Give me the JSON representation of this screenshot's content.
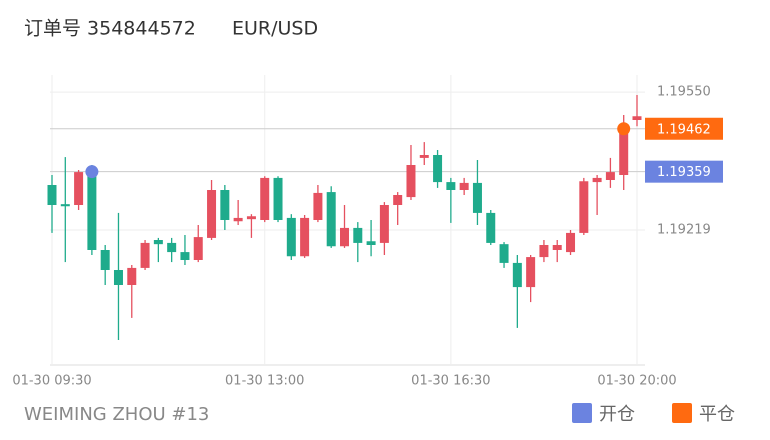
{
  "header": {
    "order": "订单号 354844572",
    "symbol": "EUR/USD"
  },
  "footer": "WEIMING ZHOU #13",
  "chart_data": {
    "type": "candlestick",
    "up_color": "#e5505f",
    "down_color": "#1fab8c",
    "categories": [
      "01-30 09:30",
      null,
      null,
      null,
      null,
      null,
      null,
      null,
      null,
      null,
      null,
      null,
      null,
      null,
      null,
      null,
      "01-30 13:00",
      null,
      null,
      null,
      null,
      null,
      null,
      null,
      null,
      null,
      null,
      null,
      null,
      null,
      "01-30 16:30",
      null,
      null,
      null,
      null,
      null,
      null,
      null,
      null,
      null,
      null,
      null,
      null,
      null,
      "01-30 20:00"
    ],
    "open": [
      1.19327,
      1.19281,
      1.19279,
      1.19351,
      1.19171,
      1.19123,
      1.19087,
      1.19128,
      1.19195,
      1.19188,
      1.19166,
      1.19147,
      1.192,
      1.19315,
      1.1924,
      1.19245,
      1.19243,
      1.19344,
      1.19248,
      1.19156,
      1.19243,
      1.1931,
      1.1918,
      1.19224,
      1.19192,
      1.19188,
      1.19279,
      1.19298,
      1.19392,
      1.19399,
      1.19334,
      1.19315,
      1.19332,
      1.1926,
      1.19185,
      1.1914,
      1.19082,
      1.19154,
      1.19171,
      1.19166,
      1.19212,
      1.19334,
      1.19339,
      1.19351,
      1.19483
    ],
    "high": [
      1.19351,
      1.19394,
      1.19363,
      1.19375,
      1.19183,
      1.1926,
      1.19135,
      1.19195,
      1.192,
      1.192,
      1.19207,
      1.19231,
      1.19339,
      1.19327,
      1.19291,
      1.19257,
      1.19348,
      1.19348,
      1.19257,
      1.19255,
      1.19327,
      1.19324,
      1.19279,
      1.19238,
      1.19243,
      1.19286,
      1.1931,
      1.19423,
      1.1943,
      1.19411,
      1.19344,
      1.19344,
      1.19387,
      1.19267,
      1.1919,
      1.19159,
      1.19159,
      1.19195,
      1.19195,
      1.19219,
      1.19344,
      1.19351,
      1.19392,
      1.19495,
      1.19543
    ],
    "low": [
      1.19212,
      1.19142,
      1.19267,
      1.19159,
      1.19087,
      1.18955,
      1.19008,
      1.19123,
      1.19142,
      1.19142,
      1.19135,
      1.19142,
      1.19195,
      1.19219,
      1.19231,
      1.192,
      1.19238,
      1.19238,
      1.19147,
      1.19152,
      1.19238,
      1.19176,
      1.19176,
      1.19142,
      1.19156,
      1.19159,
      1.19231,
      1.19291,
      1.19375,
      1.1932,
      1.19236,
      1.19303,
      1.19231,
      1.19183,
      1.19128,
      1.18984,
      1.19046,
      1.19142,
      1.19142,
      1.19159,
      1.19207,
      1.19255,
      1.1932,
      1.19315,
      1.19468
    ],
    "close": [
      1.19279,
      1.19276,
      1.19358,
      1.19171,
      1.19123,
      1.19087,
      1.19128,
      1.19188,
      1.19185,
      1.19166,
      1.19147,
      1.19202,
      1.19315,
      1.19243,
      1.19248,
      1.19252,
      1.19344,
      1.19243,
      1.19156,
      1.19248,
      1.19308,
      1.1918,
      1.19224,
      1.19188,
      1.19183,
      1.19279,
      1.19303,
      1.19375,
      1.19399,
      1.19334,
      1.19315,
      1.19332,
      1.1926,
      1.19188,
      1.1914,
      1.19082,
      1.19154,
      1.19183,
      1.19183,
      1.19212,
      1.19336,
      1.19344,
      1.19358,
      1.19459,
      1.19492
    ],
    "ylim": [
      1.18895,
      1.19591
    ],
    "yticks": [
      {
        "value": 1.1955,
        "label": "1.19550"
      },
      1.19219
    ],
    "markers": [
      {
        "name": "开仓",
        "color": "#6b83e0",
        "x": 3,
        "value": 1.19359
      },
      {
        "name": "平仓",
        "color": "#ff6a10",
        "x": 43,
        "value": 1.19462
      }
    ]
  }
}
